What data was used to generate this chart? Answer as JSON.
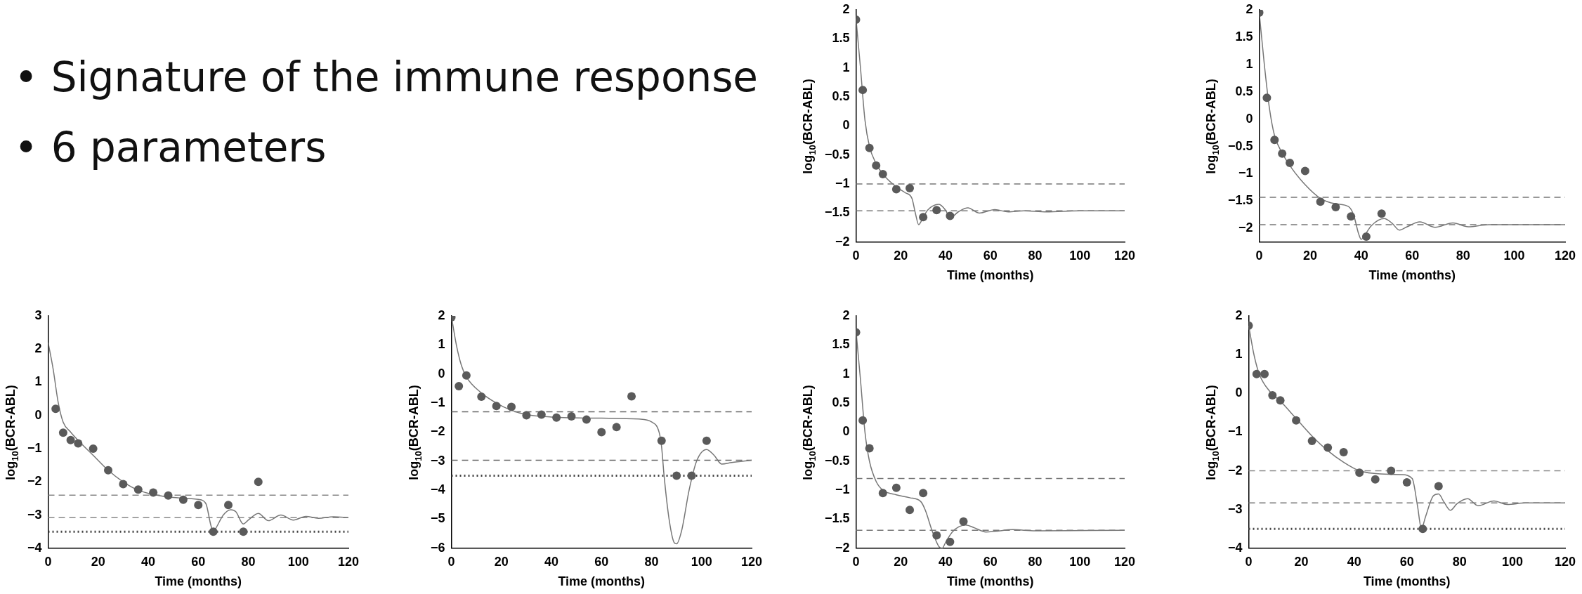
{
  "chart_data": [
    {
      "type": "other",
      "annotations": [
        "• Signature of the immune response",
        "• 6 parameters"
      ]
    },
    {
      "type": "scatter",
      "xlabel": "Time (months)",
      "ylabel": "log$_{10}$(BCR-ABL)",
      "xlim": [
        0,
        120
      ],
      "xticks": [
        0,
        20,
        40,
        60,
        80,
        100,
        120
      ],
      "ylim": [
        -2,
        2
      ],
      "yticks": [
        -2,
        -1.5,
        -1,
        -0.5,
        0,
        0.5,
        1,
        1.5,
        2
      ],
      "marker": "circle",
      "series": [
        {
          "type": "scatter",
          "color": "#5a5a5a",
          "x": [
            0,
            3,
            6,
            9,
            12,
            18,
            24,
            30,
            36,
            42
          ],
          "values": [
            1.83,
            0.62,
            -0.38,
            -0.68,
            -0.83,
            -1.09,
            -1.07,
            -1.57,
            -1.45,
            -1.55
          ]
        },
        {
          "type": "line",
          "marker": "none",
          "color": "#777777",
          "x": [
            0,
            2,
            4,
            6,
            9,
            12,
            18,
            22,
            25,
            26.5,
            28,
            29,
            32,
            37,
            40,
            42,
            46,
            50,
            55,
            62,
            68,
            75,
            85,
            100,
            120
          ],
          "values": [
            1.85,
            1.0,
            0.1,
            -0.35,
            -0.65,
            -0.83,
            -1.05,
            -1.15,
            -1.25,
            -1.5,
            -1.7,
            -1.65,
            -1.45,
            -1.35,
            -1.45,
            -1.58,
            -1.47,
            -1.41,
            -1.5,
            -1.44,
            -1.48,
            -1.46,
            -1.48,
            -1.46,
            -1.46
          ]
        }
      ],
      "ref_lines": [
        {
          "axis": "y",
          "value": -1,
          "line_style": "dashed",
          "color": "#777777"
        },
        {
          "axis": "y",
          "value": -1.46,
          "line_style": "dashed",
          "color": "#777777"
        }
      ]
    },
    {
      "type": "scatter",
      "xlabel": "Time (months)",
      "ylabel": "log$_{10}$(BCR-ABL)",
      "xlim": [
        0,
        120
      ],
      "xticks": [
        0,
        20,
        40,
        60,
        80,
        100,
        120
      ],
      "ylim": [
        -2.25,
        2
      ],
      "yticks": [
        -2,
        -1.5,
        -1,
        -0.5,
        0,
        0.5,
        1,
        1.5,
        2
      ],
      "marker": "circle",
      "series": [
        {
          "type": "scatter",
          "color": "#5a5a5a",
          "x": [
            0,
            3,
            6,
            9,
            12,
            18,
            24,
            30,
            36,
            42,
            48
          ],
          "values": [
            1.95,
            0.39,
            -0.38,
            -0.63,
            -0.8,
            -0.95,
            -1.51,
            -1.61,
            -1.78,
            -2.15,
            -1.73
          ]
        },
        {
          "type": "line",
          "marker": "none",
          "color": "#777777",
          "x": [
            0,
            2,
            4,
            6,
            9,
            12,
            18,
            24,
            30,
            35,
            37,
            39,
            40,
            41,
            44,
            49,
            52,
            55,
            58,
            63,
            69,
            76,
            82,
            90,
            100,
            120
          ],
          "values": [
            1.95,
            1.0,
            0.2,
            -0.3,
            -0.62,
            -0.85,
            -1.2,
            -1.45,
            -1.55,
            -1.6,
            -1.75,
            -2.1,
            -2.2,
            -2.15,
            -1.95,
            -1.82,
            -1.9,
            -2.03,
            -1.97,
            -1.88,
            -1.98,
            -1.9,
            -1.97,
            -1.93,
            -1.93,
            -1.93
          ]
        }
      ],
      "ref_lines": [
        {
          "axis": "y",
          "value": -1.43,
          "line_style": "dashed",
          "color": "#777777"
        },
        {
          "axis": "y",
          "value": -1.93,
          "line_style": "dashed",
          "color": "#777777"
        }
      ]
    },
    {
      "type": "scatter",
      "xlabel": "Time (months)",
      "ylabel": "log$_{10}$(BCR-ABL)",
      "xlim": [
        0,
        120
      ],
      "xticks": [
        0,
        20,
        40,
        60,
        80,
        100,
        120
      ],
      "ylim": [
        -4,
        3
      ],
      "yticks": [
        -4,
        -3,
        -2,
        -1,
        0,
        1,
        2,
        3
      ],
      "marker": "circle",
      "series": [
        {
          "type": "scatter",
          "color": "#5a5a5a",
          "x": [
            3,
            6,
            9,
            12,
            18,
            24,
            30,
            36,
            42,
            48,
            54,
            60,
            66,
            72,
            78,
            84
          ],
          "values": [
            0.2,
            -0.52,
            -0.74,
            -0.84,
            -1.0,
            -1.65,
            -2.07,
            -2.23,
            -2.32,
            -2.41,
            -2.54,
            -2.7,
            -3.5,
            -2.7,
            -3.5,
            -2.0
          ]
        },
        {
          "type": "line",
          "marker": "none",
          "color": "#777777",
          "x": [
            0,
            2,
            4,
            6,
            9,
            12,
            18,
            24,
            30,
            36,
            42,
            50,
            60,
            63,
            65,
            66,
            67,
            70,
            73,
            75,
            78,
            80,
            84,
            88,
            93,
            98,
            103,
            108,
            114,
            120
          ],
          "values": [
            2.2,
            1.4,
            0.4,
            -0.2,
            -0.5,
            -0.75,
            -1.2,
            -1.65,
            -2.0,
            -2.25,
            -2.38,
            -2.47,
            -2.53,
            -2.65,
            -3.3,
            -3.5,
            -3.4,
            -3.0,
            -2.84,
            -2.9,
            -3.27,
            -3.15,
            -2.95,
            -3.17,
            -3.0,
            -3.15,
            -3.04,
            -3.1,
            -3.05,
            -3.08
          ]
        }
      ],
      "ref_lines": [
        {
          "axis": "y",
          "value": -2.4,
          "line_style": "dashed",
          "color": "#888888"
        },
        {
          "axis": "y",
          "value": -3.08,
          "line_style": "dashed",
          "color": "#888888"
        },
        {
          "axis": "y",
          "value": -3.5,
          "line_style": "dotted",
          "color": "#444444"
        }
      ]
    },
    {
      "type": "scatter",
      "xlabel": "Time (months)",
      "ylabel": "log$_{10}$(BCR-ABL)",
      "xlim": [
        0,
        120
      ],
      "xticks": [
        0,
        20,
        40,
        60,
        80,
        100,
        120
      ],
      "ylim": [
        -6,
        2
      ],
      "yticks": [
        -6,
        -5,
        -4,
        -3,
        -2,
        -1,
        0,
        1,
        2
      ],
      "marker": "circle",
      "series": [
        {
          "type": "scatter",
          "color": "#5a5a5a",
          "x": [
            0,
            3,
            6,
            12,
            18,
            24,
            30,
            36,
            42,
            48,
            54,
            60,
            66,
            72,
            84,
            90,
            96,
            102
          ],
          "values": [
            1.95,
            -0.42,
            -0.05,
            -0.78,
            -1.1,
            -1.13,
            -1.42,
            -1.4,
            -1.5,
            -1.46,
            -1.57,
            -2.0,
            -1.83,
            -0.77,
            -2.3,
            -3.5,
            -3.5,
            -2.3
          ]
        },
        {
          "type": "line",
          "marker": "none",
          "color": "#777777",
          "x": [
            0,
            2,
            4,
            6,
            12,
            18,
            24,
            30,
            40,
            60,
            75,
            80,
            83,
            84,
            85,
            87,
            89,
            90,
            92,
            95,
            98,
            102,
            105,
            108,
            112,
            120
          ],
          "values": [
            2.0,
            1.0,
            0.3,
            -0.1,
            -0.65,
            -1.0,
            -1.25,
            -1.4,
            -1.48,
            -1.52,
            -1.55,
            -1.65,
            -2.0,
            -2.5,
            -3.5,
            -5.0,
            -5.8,
            -5.85,
            -5.4,
            -4.0,
            -3.0,
            -2.6,
            -2.8,
            -3.1,
            -3.05,
            -2.97
          ]
        }
      ],
      "ref_lines": [
        {
          "axis": "y",
          "value": -1.3,
          "line_style": "dashed",
          "color": "#666666"
        },
        {
          "axis": "y",
          "value": -2.97,
          "line_style": "dashed",
          "color": "#666666"
        },
        {
          "axis": "y",
          "value": -3.5,
          "line_style": "dotted",
          "color": "#444444"
        }
      ]
    },
    {
      "type": "scatter",
      "xlabel": "Time (months)",
      "ylabel": "log$_{10}$(BCR-ABL)",
      "xlim": [
        0,
        120
      ],
      "xticks": [
        0,
        20,
        40,
        60,
        80,
        100,
        120
      ],
      "ylim": [
        -2,
        2
      ],
      "yticks": [
        -2,
        -1.5,
        -1,
        -0.5,
        0,
        0.5,
        1,
        1.5,
        2
      ],
      "marker": "circle",
      "series": [
        {
          "type": "scatter",
          "color": "#5a5a5a",
          "x": [
            0,
            3,
            6,
            12,
            18,
            24,
            30,
            36,
            42,
            48
          ],
          "values": [
            1.72,
            0.2,
            -0.28,
            -1.05,
            -0.96,
            -1.34,
            -1.05,
            -1.78,
            -1.89,
            -1.54
          ]
        },
        {
          "type": "line",
          "marker": "none",
          "color": "#777777",
          "x": [
            0,
            2,
            4,
            6,
            9,
            12,
            18,
            24,
            29,
            31,
            34,
            37,
            38.5,
            40,
            43,
            46,
            49,
            53,
            58,
            62,
            70,
            80,
            120
          ],
          "values": [
            1.75,
            0.9,
            0.0,
            -0.5,
            -0.85,
            -1.0,
            -1.08,
            -1.13,
            -1.2,
            -1.35,
            -1.7,
            -1.97,
            -2.0,
            -1.9,
            -1.72,
            -1.63,
            -1.6,
            -1.65,
            -1.72,
            -1.71,
            -1.68,
            -1.7,
            -1.69
          ]
        }
      ],
      "ref_lines": [
        {
          "axis": "y",
          "value": -0.8,
          "line_style": "dashed",
          "color": "#777777"
        },
        {
          "axis": "y",
          "value": -1.69,
          "line_style": "dashed",
          "color": "#777777"
        }
      ]
    },
    {
      "type": "scatter",
      "xlabel": "Time (months)",
      "ylabel": "log$_{10}$(BCR-ABL)",
      "xlim": [
        0,
        120
      ],
      "xticks": [
        0,
        20,
        40,
        60,
        80,
        100,
        120
      ],
      "ylim": [
        -4,
        2
      ],
      "yticks": [
        -4,
        -3,
        -2,
        -1,
        0,
        1,
        2
      ],
      "marker": "circle",
      "series": [
        {
          "type": "scatter",
          "color": "#5a5a5a",
          "x": [
            0,
            3,
            6,
            9,
            12,
            18,
            24,
            30,
            36,
            42,
            48,
            54,
            60,
            66,
            72
          ],
          "values": [
            1.75,
            0.5,
            0.5,
            -0.05,
            -0.18,
            -0.7,
            -1.23,
            -1.4,
            -1.52,
            -2.05,
            -2.22,
            -2.0,
            -2.3,
            -3.5,
            -2.4
          ]
        },
        {
          "type": "line",
          "marker": "none",
          "color": "#777777",
          "x": [
            0,
            2,
            4,
            8,
            12,
            18,
            24,
            30,
            36,
            42,
            50,
            58,
            62,
            64,
            65.5,
            67,
            70,
            72,
            74,
            76.5,
            79,
            83,
            87,
            93,
            98,
            105,
            120
          ],
          "values": [
            1.75,
            1.0,
            0.5,
            0.05,
            -0.2,
            -0.65,
            -1.1,
            -1.48,
            -1.78,
            -2.0,
            -2.08,
            -2.1,
            -2.2,
            -2.9,
            -3.5,
            -3.2,
            -2.65,
            -2.6,
            -2.8,
            -3.02,
            -2.85,
            -2.72,
            -2.9,
            -2.78,
            -2.87,
            -2.83,
            -2.83
          ]
        }
      ],
      "ref_lines": [
        {
          "axis": "y",
          "value": -2.0,
          "line_style": "dashed",
          "color": "#888888"
        },
        {
          "axis": "y",
          "value": -2.83,
          "line_style": "dashed",
          "color": "#777777"
        },
        {
          "axis": "y",
          "value": -3.5,
          "line_style": "dotted",
          "color": "#444444"
        }
      ]
    }
  ]
}
